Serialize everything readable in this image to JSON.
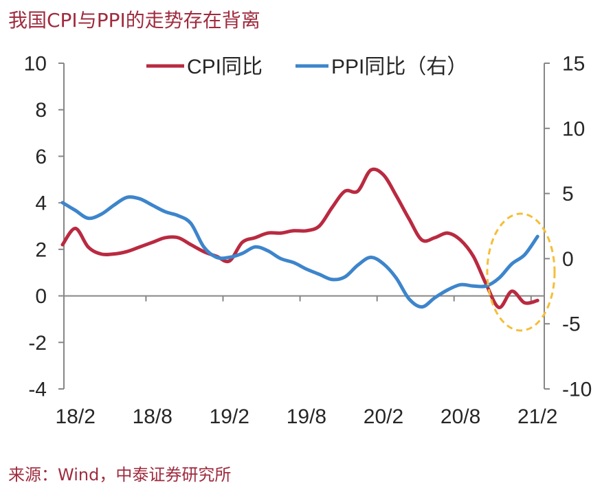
{
  "source": "来源：Wind，中泰证券研究所",
  "colors": {
    "heading_text": "#9F2B3E",
    "axis": "#868686",
    "text": "#262626",
    "highlight": "#F4BE36"
  },
  "chart_data": {
    "type": "line",
    "title": "我国CPI与PPI的走势存在背离",
    "smooth": true,
    "grid": false,
    "legend": "top",
    "categories": [
      "",
      "18/2",
      "",
      "",
      "",
      "",
      "",
      "18/8",
      "",
      "",
      "",
      "",
      "",
      "19/2",
      "",
      "",
      "",
      "",
      "",
      "19/8",
      "",
      "",
      "",
      "",
      "",
      "20/2",
      "",
      "",
      "",
      "",
      "",
      "20/8",
      "",
      "",
      "",
      "",
      "",
      "21/2"
    ],
    "series": [
      {
        "name": "CPI同比",
        "y_axis": "left",
        "color": "#B92A40",
        "values": [
          2.2,
          2.9,
          2.1,
          1.8,
          1.8,
          1.9,
          2.1,
          2.3,
          2.5,
          2.5,
          2.2,
          1.9,
          1.7,
          1.5,
          2.3,
          2.5,
          2.7,
          2.7,
          2.8,
          2.8,
          3.0,
          3.8,
          4.5,
          4.5,
          5.4,
          5.2,
          4.3,
          3.3,
          2.4,
          2.5,
          2.7,
          2.4,
          1.7,
          0.5,
          -0.5,
          0.2,
          -0.3,
          -0.2
        ]
      },
      {
        "name": "PPI同比（右）",
        "y_axis": "right",
        "color": "#3D85CC",
        "values": [
          4.3,
          3.7,
          3.1,
          3.4,
          4.1,
          4.7,
          4.6,
          4.1,
          3.6,
          3.3,
          2.7,
          0.9,
          0.1,
          0.1,
          0.4,
          0.9,
          0.6,
          0.0,
          -0.3,
          -0.8,
          -1.2,
          -1.6,
          -1.4,
          -0.5,
          0.1,
          -0.4,
          -1.5,
          -3.1,
          -3.7,
          -3.0,
          -2.4,
          -2.0,
          -2.1,
          -2.1,
          -1.5,
          -0.4,
          0.3,
          1.7
        ]
      }
    ],
    "y_left": {
      "min": -4,
      "max": 10,
      "ticks": [
        10,
        8,
        6,
        4,
        2,
        0,
        -2,
        -4
      ]
    },
    "y_right": {
      "min": -10,
      "max": 15,
      "ticks": [
        15,
        10,
        5,
        0,
        -5,
        -10
      ]
    }
  }
}
